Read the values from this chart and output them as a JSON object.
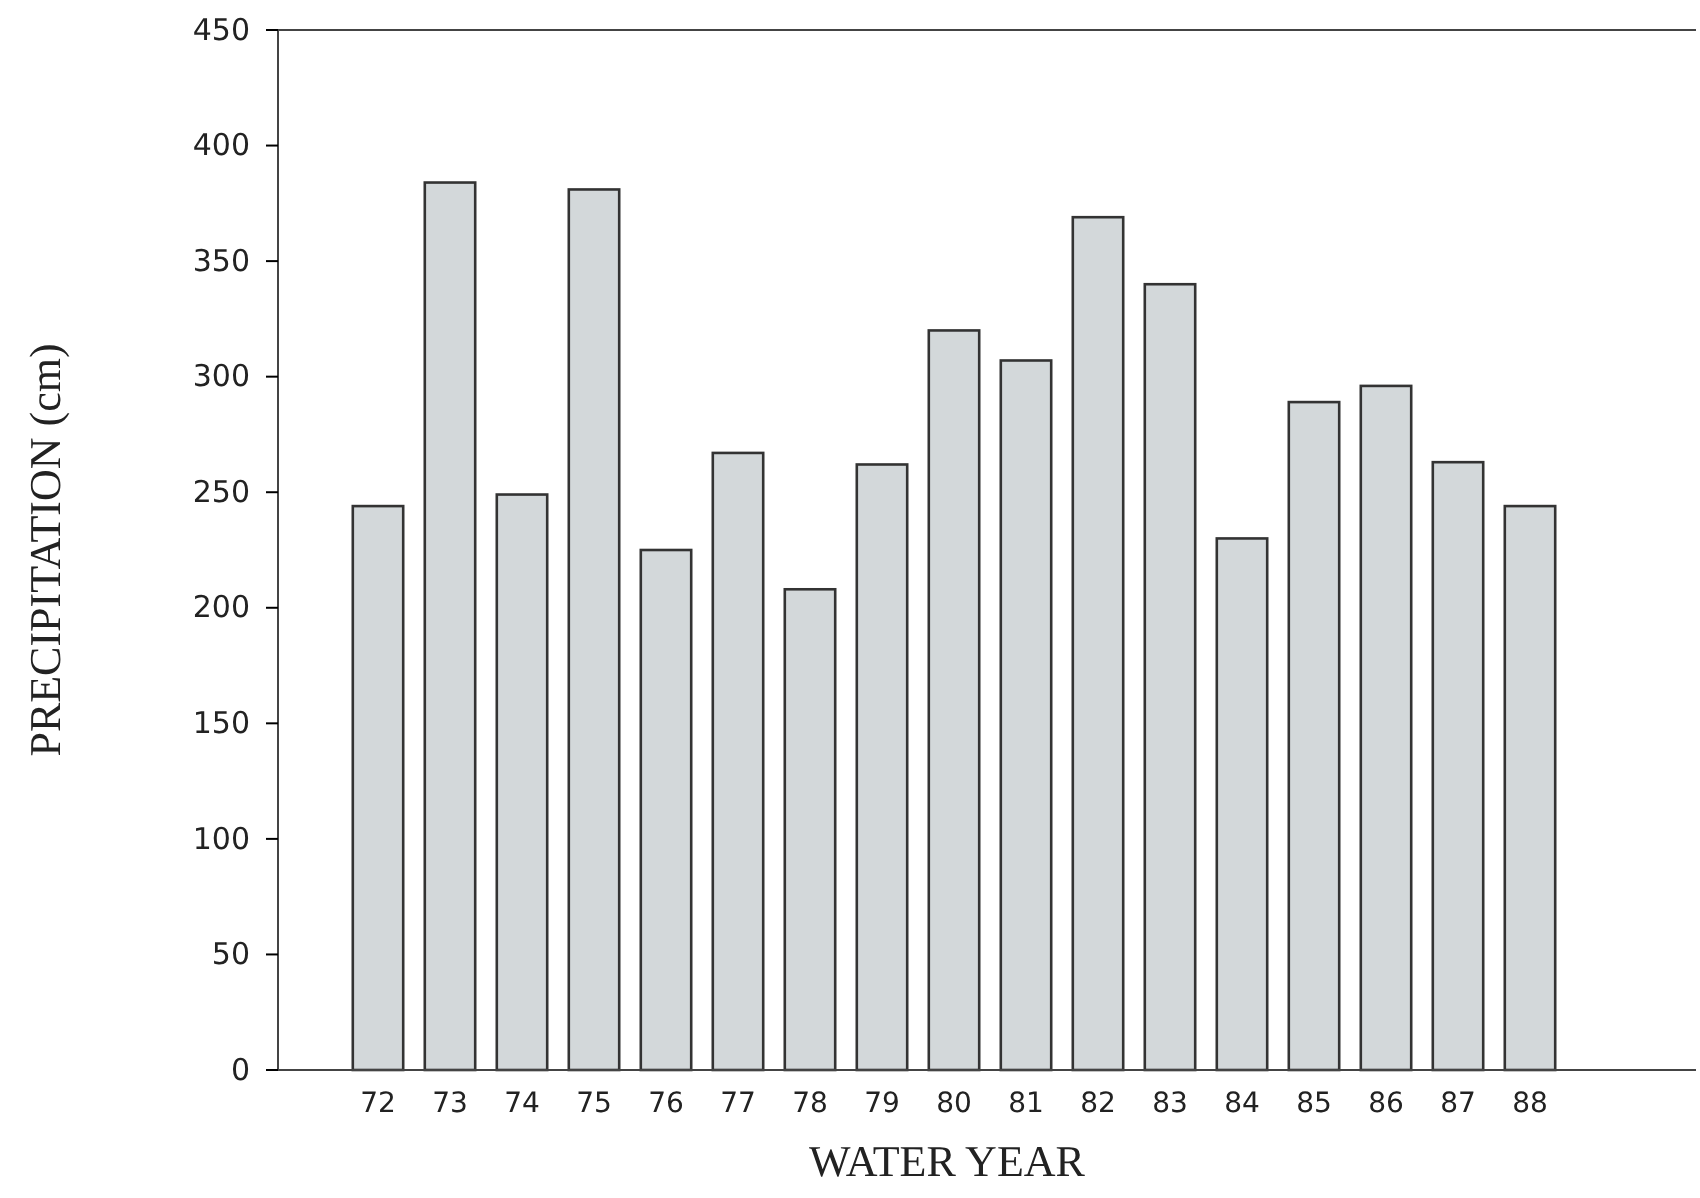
{
  "chart_data": {
    "type": "bar",
    "xlabel": "WATER YEAR",
    "ylabel": "PRECIPITATION (cm)",
    "categories": [
      "72",
      "73",
      "74",
      "75",
      "76",
      "77",
      "78",
      "79",
      "80",
      "81",
      "82",
      "83",
      "84",
      "85",
      "86",
      "87",
      "88"
    ],
    "values": [
      244,
      384,
      249,
      381,
      225,
      267,
      208,
      262,
      320,
      307,
      369,
      340,
      230,
      289,
      296,
      263,
      244
    ],
    "color": "#d3d8da",
    "ylim": [
      0,
      450
    ],
    "yticks": [
      0,
      50,
      100,
      150,
      200,
      250,
      300,
      350,
      400,
      450
    ],
    "grid": false
  }
}
